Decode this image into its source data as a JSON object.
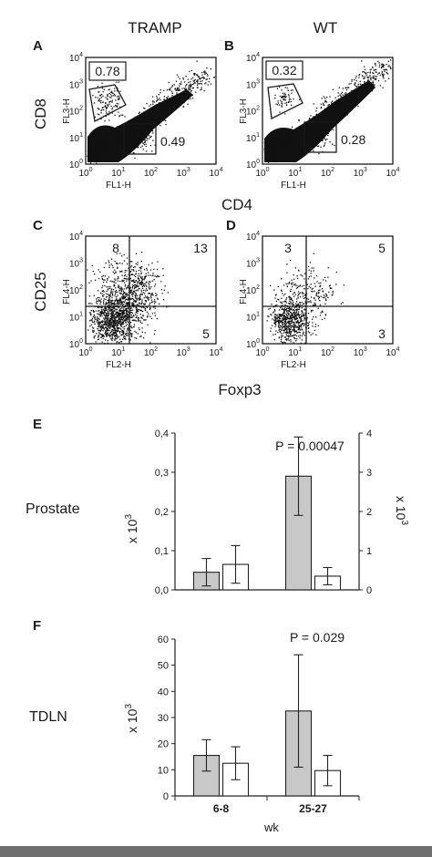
{
  "top": {
    "col_left": "TRAMP",
    "col_right": "WT",
    "y_label_cd8": "CD8",
    "x_label_cd4": "CD4",
    "y_label_cd25": "CD25",
    "x_label_foxp3": "Foxp3"
  },
  "panels": {
    "A": {
      "letter": "A",
      "ch_y": "FL3-H",
      "ch_x": "FL1-H",
      "q_upper": "0.78",
      "q_lower": "0.49"
    },
    "B": {
      "letter": "B",
      "ch_y": "FL3-H",
      "ch_x": "FL1-H",
      "q_upper": "0.32",
      "q_lower": "0.28"
    },
    "C": {
      "letter": "C",
      "ch_y": "FL4-H",
      "ch_x": "FL2-H",
      "q_ul": "8",
      "q_ur": "13",
      "q_lr": "5"
    },
    "D": {
      "letter": "D",
      "ch_y": "FL4-H",
      "ch_x": "FL2-H",
      "q_ul": "3",
      "q_ur": "5",
      "q_lr": "3"
    }
  },
  "flow_axis_ticks": [
    "10",
    "10",
    "10",
    "10",
    "10"
  ],
  "flow_axis_exponents": [
    "0",
    "1",
    "2",
    "3",
    "4"
  ],
  "chart_data": [
    {
      "type": "bar",
      "panel": "E",
      "row_label": "Prostate",
      "title": "",
      "p_value": "P = 0.00047",
      "categories": [
        "6-8",
        "25-27"
      ],
      "series": [
        {
          "values": [
            0.045,
            0.29
          ],
          "err": [
            0.035,
            0.1
          ],
          "color": "#c8c8c8"
        },
        {
          "values": [
            0.065,
            0.035
          ],
          "err": [
            0.048,
            0.022
          ],
          "color": "#ffffff"
        }
      ],
      "ylabel": "x 10",
      "ylabel_exp": "3",
      "ylim": [
        0,
        0.4
      ],
      "yticks": [
        "0,0",
        "0,1",
        "0,2",
        "0,3",
        "0,4"
      ],
      "y2label": "x 10",
      "y2label_exp": "3",
      "y2lim": [
        0,
        4
      ],
      "y2ticks": [
        "0",
        "1",
        "2",
        "3",
        "4"
      ]
    },
    {
      "type": "bar",
      "panel": "F",
      "row_label": "TDLN",
      "title": "",
      "p_value": "P = 0.029",
      "categories": [
        "6-8",
        "25-27"
      ],
      "series": [
        {
          "values": [
            15.5,
            32.5
          ],
          "err": [
            6,
            21.5
          ],
          "color": "#c8c8c8"
        },
        {
          "values": [
            12.5,
            9.7
          ],
          "err": [
            6.3,
            5.8
          ],
          "color": "#ffffff"
        }
      ],
      "ylabel": "x 10",
      "ylabel_exp": "3",
      "xlabel": "wk",
      "ylim": [
        0,
        60
      ],
      "yticks": [
        "0",
        "10",
        "20",
        "30",
        "40",
        "50",
        "60"
      ]
    }
  ]
}
